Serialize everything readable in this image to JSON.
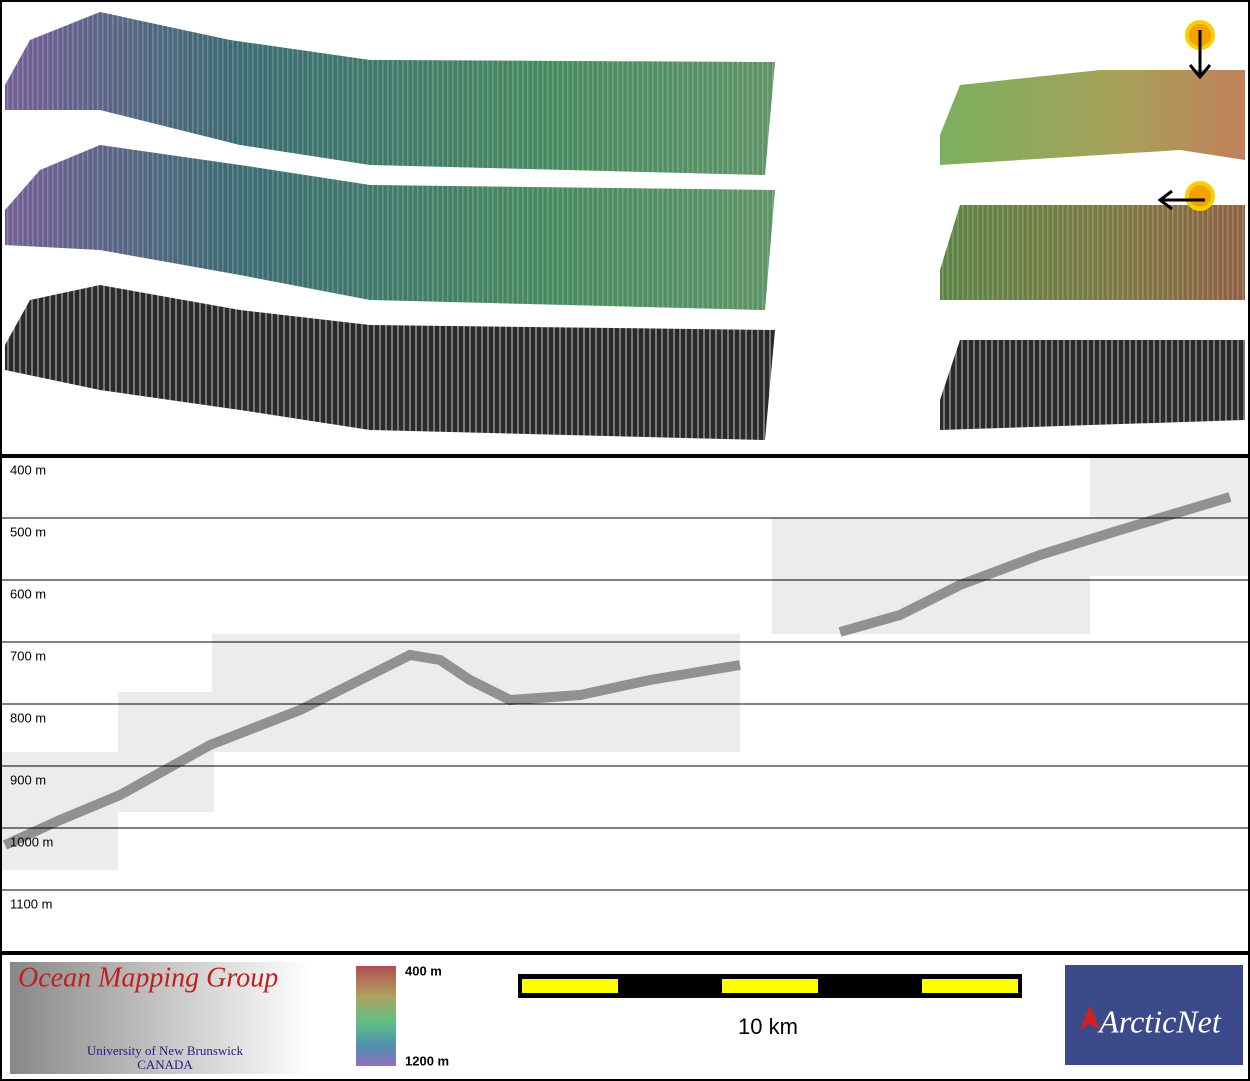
{
  "profile": {
    "depth_labels": [
      "400 m",
      "500 m",
      "600 m",
      "700 m",
      "800 m",
      "900 m",
      "1000 m",
      "1100 m"
    ]
  },
  "legend": {
    "color_top": "400 m",
    "color_bottom": "1200 m",
    "scale": "10 km"
  },
  "logo_left": {
    "title": "Ocean Mapping Group",
    "line1": "University of New Brunswick",
    "line2": "CANADA"
  },
  "logo_right": {
    "title": "ArcticNet"
  }
}
